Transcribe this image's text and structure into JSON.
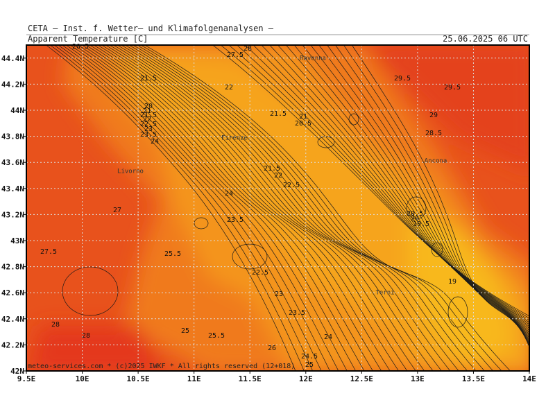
{
  "header": {
    "institute": "CETA — Inst. f. Wetter— und Klimafolgenanalysen —",
    "title": "Apparent Temperature [C]",
    "valid_time": "25.06.2025 06 UTC"
  },
  "lat_ticks": [
    "44.4N",
    "44.2N",
    "44N",
    "43.8N",
    "43.6N",
    "43.4N",
    "43.2N",
    "43N",
    "42.8N",
    "42.6N",
    "42.4N",
    "42.2N",
    "42N"
  ],
  "lon_ticks": [
    "9.5E",
    "10E",
    "10.5E",
    "11E",
    "11.5E",
    "12E",
    "12.5E",
    "13E",
    "13.5E",
    "14E"
  ],
  "cities": [
    "Ravenna",
    "Firenze",
    "Livorno",
    "Ancona",
    "Terni"
  ],
  "contour_labels": [
    "20.5",
    "27.5",
    "28",
    "21.5",
    "22",
    "29.5",
    "29.5",
    "20",
    "21",
    "21.5",
    "22",
    "22.5",
    "23",
    "23.5",
    "24",
    "21.5",
    "21",
    "20.5",
    "29",
    "28.5",
    "21.5",
    "22",
    "22.5",
    "24",
    "27",
    "23.5",
    "20.5",
    "20",
    "19.5",
    "27.5",
    "25.5",
    "22.5",
    "19",
    "23",
    "23.5",
    "28",
    "28",
    "25",
    "25.5",
    "24",
    "26",
    "24.5",
    "25"
  ],
  "footer": "meteo-services.com * (c)2025 IWKF * All rights reserved (12+018)"
}
